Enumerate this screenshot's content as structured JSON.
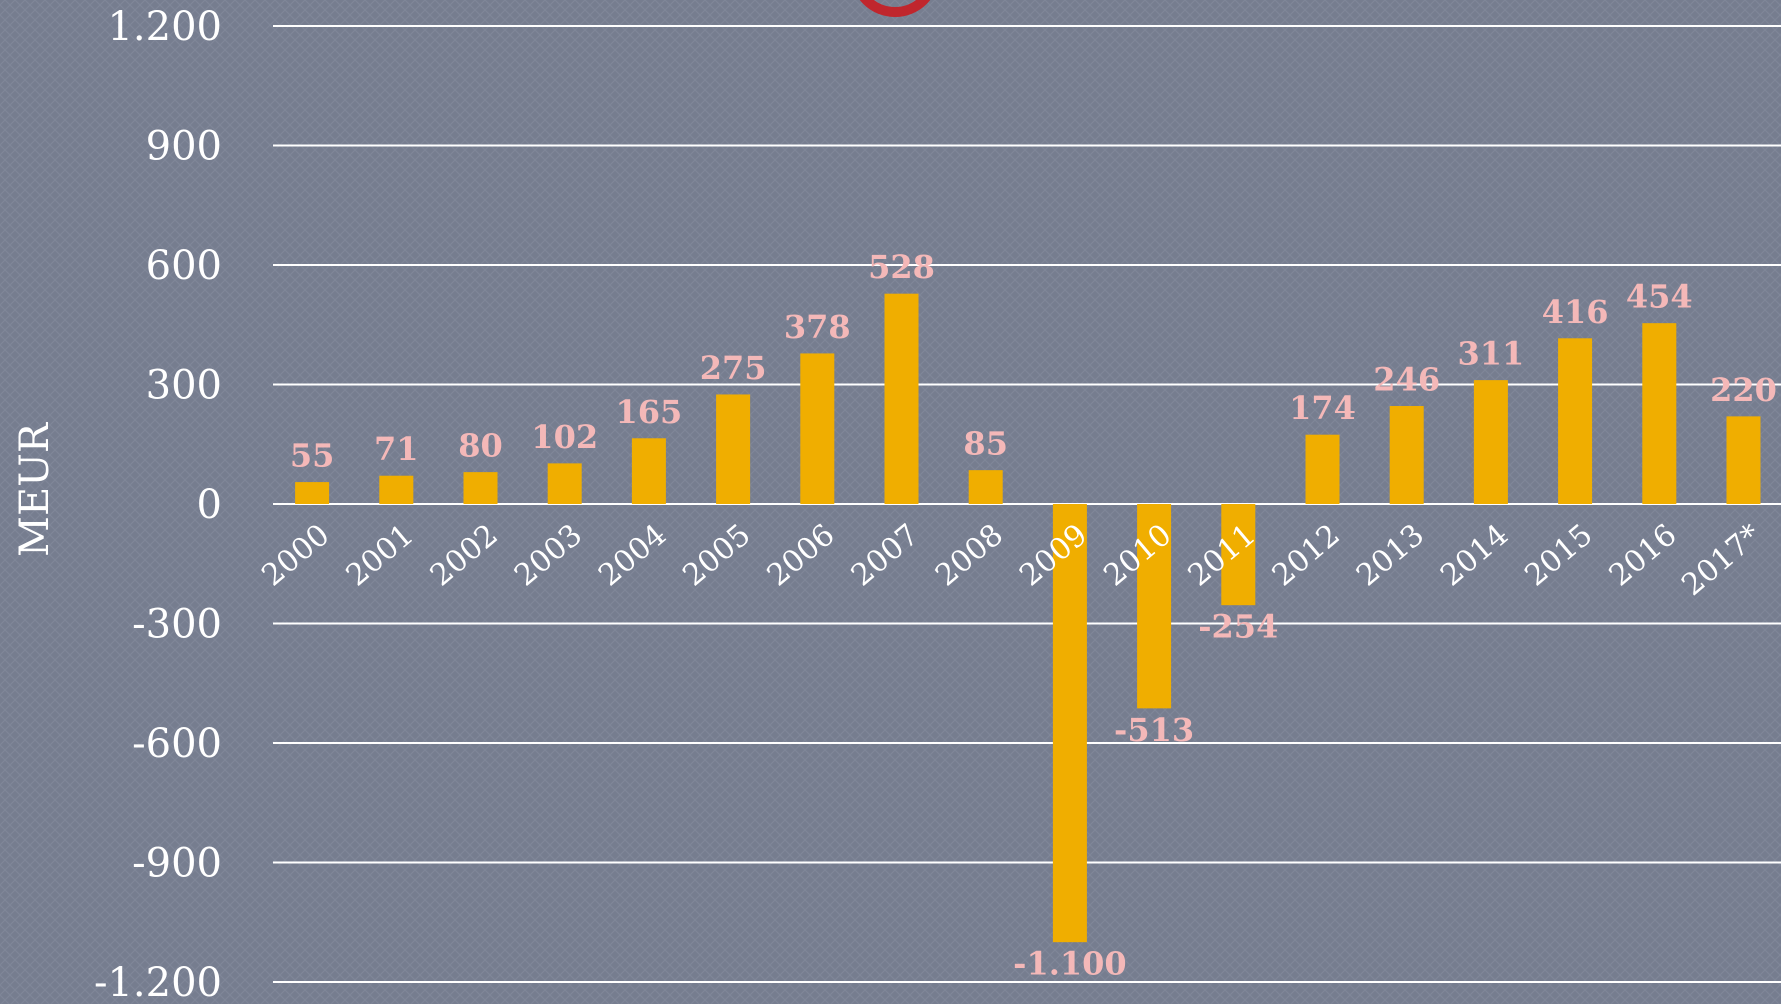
{
  "chart_data": {
    "type": "bar",
    "y_label": "MEUR",
    "categories": [
      "2000",
      "2001",
      "2002",
      "2003",
      "2004",
      "2005",
      "2006",
      "2007",
      "2008",
      "2009",
      "2010",
      "2011",
      "2012",
      "2013",
      "2014",
      "2015",
      "2016",
      "2017*"
    ],
    "values": [
      55,
      71,
      80,
      102,
      165,
      275,
      378,
      528,
      85,
      -1100,
      -513,
      -254,
      174,
      246,
      311,
      416,
      454,
      220
    ],
    "value_labels": [
      "55",
      "71",
      "80",
      "102",
      "165",
      "275",
      "378",
      "528",
      "85",
      "-1.100",
      "-513",
      "-254",
      "174",
      "246",
      "311",
      "416",
      "454",
      "220"
    ],
    "color": "#f0ae00",
    "ylim": [
      -1200,
      1200
    ],
    "yticks": [
      {
        "value": -1200,
        "label": "-1.200"
      },
      -900,
      -600,
      -300,
      0,
      300,
      600,
      900,
      {
        "value": 1200,
        "label": "1.200"
      }
    ],
    "grid": true
  }
}
